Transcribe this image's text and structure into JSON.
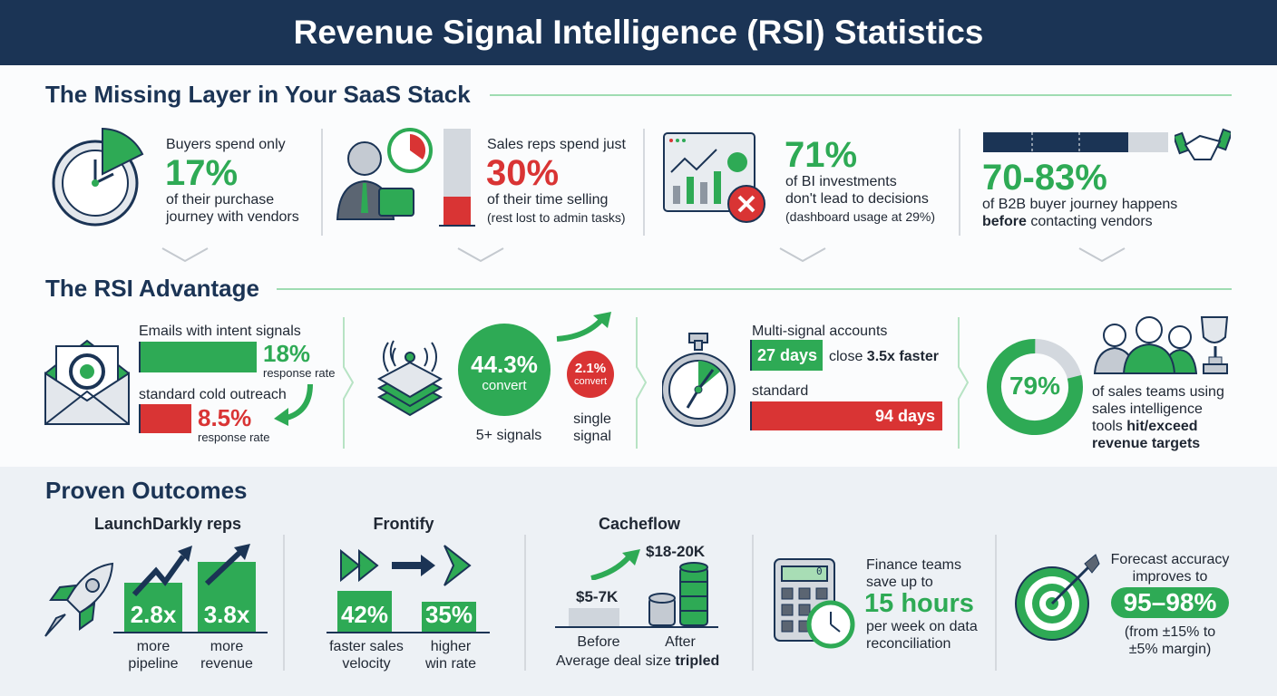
{
  "title": "Revenue Signal Intelligence (RSI) Statistics",
  "colors": {
    "navy": "#1b3455",
    "green": "#2eaa55",
    "red": "#d93434",
    "gray": "#cfd5dc"
  },
  "s1": {
    "title": "The Missing Layer in Your SaaS Stack",
    "c1": {
      "pre": "Buyers spend only",
      "value": "17%",
      "l1": "of their purchase",
      "l2": "journey with vendors",
      "icon": "clock-icon"
    },
    "c2": {
      "pre": "Sales reps spend just",
      "value": "30%",
      "l1": "of their time selling",
      "l2": "(rest lost to admin tasks)",
      "fill_percent": 30,
      "icon": "businessman-icon"
    },
    "c3": {
      "value": "71%",
      "l1": "of BI investments",
      "l2": "don't lead to decisions",
      "l3": "(dashboard usage at 29%)",
      "icon": "dashboard-error-icon"
    },
    "c4": {
      "value": "70-83%",
      "l1": "of B2B buyer journey happens",
      "l2b": "before",
      "l2": " contacting vendors",
      "fill_percent": 83,
      "icon": "handshake-icon"
    }
  },
  "s2": {
    "title": "The RSI Advantage",
    "c1": {
      "l1": "Emails with intent signals",
      "v1": "18%",
      "s1": "response rate",
      "l2": "standard cold outreach",
      "v2": "8.5%",
      "s2": "response rate",
      "icon": "email-target-icon"
    },
    "c2": {
      "v1": "44.3%",
      "c1": "convert",
      "n1": "5+ signals",
      "v2": "2.1%",
      "c2": "convert",
      "n2a": "single",
      "n2b": "signal",
      "icon": "signal-layers-icon"
    },
    "c3": {
      "l1": "Multi-signal accounts",
      "v1": "27 days",
      "m1": "close ",
      "m1b": "3.5x faster",
      "l2": "standard",
      "v2": "94 days",
      "icon": "stopwatch-icon"
    },
    "c4": {
      "value": "79%",
      "percent": 79,
      "l1": "of sales teams using",
      "l2": "sales intelligence",
      "l3a": "tools ",
      "l3b": "hit/exceed",
      "l4": "revenue targets",
      "icon": "team-trophy-icon"
    }
  },
  "s3": {
    "title": "Proven Outcomes",
    "c1": {
      "title": "LaunchDarkly reps",
      "v1": "2.8x",
      "a1": "more",
      "b1": "pipeline",
      "v2": "3.8x",
      "a2": "more",
      "b2": "revenue",
      "icon": "rocket-icon"
    },
    "c2": {
      "title": "Frontify",
      "v1": "42%",
      "a1": "faster sales",
      "b1": "velocity",
      "v2": "35%",
      "a2": "higher",
      "b2": "win rate"
    },
    "c3": {
      "title": "Cacheflow",
      "before_val": "$5-7K",
      "after_val": "$18-20K",
      "before": "Before",
      "after": "After",
      "cap": "Average deal size ",
      "capb": "tripled"
    },
    "c4": {
      "l1": "Finance teams",
      "l2": "save up to",
      "value": "15 hours",
      "l3": "per week on data",
      "l4": "reconciliation",
      "calc_display": "0",
      "icon": "calculator-clock-icon"
    },
    "c5": {
      "l1": "Forecast accuracy",
      "l2": "improves to",
      "value": "95–98%",
      "l3": "(from ±15% to",
      "l4": "±5% margin)",
      "icon": "target-arrow-icon"
    }
  }
}
